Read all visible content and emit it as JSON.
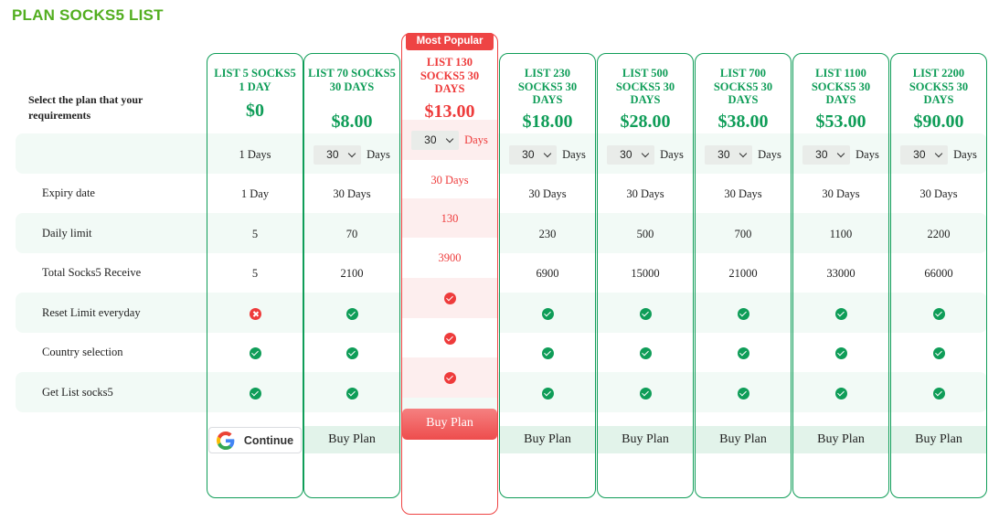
{
  "page": {
    "title": "PLAN SOCKS5 LIST",
    "select_hint": "Select the plan that your requirements"
  },
  "rows": {
    "expiry": "Expiry date",
    "daily_limit": "Daily limit",
    "total": "Total Socks5 Receive",
    "reset": "Reset Limit everyday",
    "country": "Country selection",
    "getlist": "Get List socks5"
  },
  "popular_badge": "Most Popular",
  "colors": {
    "accent_green": "#0f9d58",
    "accent_red": "#ee3b3b",
    "title_green": "#52ae1f"
  },
  "icons": {
    "check": "check-circle-icon",
    "cross": "cross-circle-icon",
    "google": "google-logo-icon"
  },
  "plans": [
    {
      "name": "LIST 5 SOCKS5 1 DAY",
      "price": "$0",
      "days_text": "1 Days",
      "expiry": "1 Day",
      "daily": "5",
      "total": "5",
      "reset": false,
      "country": true,
      "getlist": true,
      "action": "Continue"
    },
    {
      "name": "LIST 70 SOCKS5 30 DAYS",
      "price": "$8.00",
      "days_value": "30",
      "days_unit": "Days",
      "expiry": "30 Days",
      "daily": "70",
      "total": "2100",
      "reset": true,
      "country": true,
      "getlist": true,
      "action": "Buy Plan"
    },
    {
      "name": "LIST 130 SOCKS5 30 DAYS",
      "price": "$13.00",
      "days_value": "30",
      "days_unit": "Days",
      "expiry": "30 Days",
      "daily": "130",
      "total": "3900",
      "reset": true,
      "country": true,
      "getlist": true,
      "action": "Buy Plan",
      "popular": true
    },
    {
      "name": "LIST 230 SOCKS5 30 DAYS",
      "price": "$18.00",
      "days_value": "30",
      "days_unit": "Days",
      "expiry": "30 Days",
      "daily": "230",
      "total": "6900",
      "reset": true,
      "country": true,
      "getlist": true,
      "action": "Buy Plan"
    },
    {
      "name": "LIST 500 SOCKS5 30 DAYS",
      "price": "$28.00",
      "days_value": "30",
      "days_unit": "Days",
      "expiry": "30 Days",
      "daily": "500",
      "total": "15000",
      "reset": true,
      "country": true,
      "getlist": true,
      "action": "Buy Plan"
    },
    {
      "name": "LIST 700 SOCKS5 30 DAYS",
      "price": "$38.00",
      "days_value": "30",
      "days_unit": "Days",
      "expiry": "30 Days",
      "daily": "700",
      "total": "21000",
      "reset": true,
      "country": true,
      "getlist": true,
      "action": "Buy Plan"
    },
    {
      "name": "LIST 1100 SOCKS5 30 DAYS",
      "price": "$53.00",
      "days_value": "30",
      "days_unit": "Days",
      "expiry": "30 Days",
      "daily": "1100",
      "total": "33000",
      "reset": true,
      "country": true,
      "getlist": true,
      "action": "Buy Plan"
    },
    {
      "name": "LIST 2200 SOCKS5 30 DAYS",
      "price": "$90.00",
      "days_value": "30",
      "days_unit": "Days",
      "expiry": "30 Days",
      "daily": "2200",
      "total": "66000",
      "reset": true,
      "country": true,
      "getlist": true,
      "action": "Buy Plan"
    }
  ]
}
